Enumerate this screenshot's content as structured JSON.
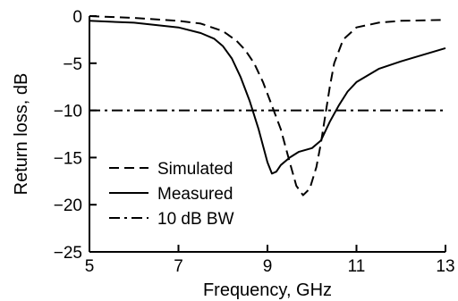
{
  "chart_data": {
    "type": "line",
    "xlabel": "Frequency, GHz",
    "ylabel": "Return loss, dB",
    "xlim": [
      5,
      13
    ],
    "ylim": [
      -25,
      0
    ],
    "x_ticks": [
      {
        "value": 5,
        "label": "5"
      },
      {
        "value": 7,
        "label": "7"
      },
      {
        "value": 9,
        "label": "9"
      },
      {
        "value": 11,
        "label": "11"
      },
      {
        "value": 13,
        "label": "13"
      }
    ],
    "y_ticks": [
      {
        "value": 0,
        "label": "0"
      },
      {
        "value": -5,
        "label": "−5"
      },
      {
        "value": -10,
        "label": "−10"
      },
      {
        "value": -15,
        "label": "−15"
      },
      {
        "value": -20,
        "label": "−20"
      },
      {
        "value": -25,
        "label": "−25"
      }
    ],
    "grid": false,
    "legend_position": "bottom-left",
    "series": [
      {
        "name": "Simulated",
        "style": "dashed",
        "color": "#000000",
        "x": [
          5.0,
          6.0,
          7.0,
          7.5,
          8.0,
          8.3,
          8.5,
          8.7,
          8.9,
          9.1,
          9.3,
          9.5,
          9.65,
          9.8,
          9.95,
          10.1,
          10.2,
          10.3,
          10.4,
          10.5,
          10.7,
          11.0,
          11.5,
          12.0,
          13.0
        ],
        "y": [
          0.0,
          -0.2,
          -0.5,
          -0.8,
          -1.6,
          -2.6,
          -3.6,
          -5.0,
          -7.0,
          -9.5,
          -12.0,
          -15.5,
          -18.0,
          -19.0,
          -18.3,
          -16.0,
          -13.5,
          -10.5,
          -7.5,
          -5.0,
          -2.5,
          -1.2,
          -0.7,
          -0.5,
          -0.4
        ]
      },
      {
        "name": "Measured",
        "style": "solid",
        "color": "#000000",
        "x": [
          5.0,
          6.0,
          7.0,
          7.5,
          7.8,
          8.0,
          8.2,
          8.4,
          8.6,
          8.8,
          9.0,
          9.1,
          9.2,
          9.3,
          9.5,
          9.7,
          10.0,
          10.2,
          10.4,
          10.6,
          10.8,
          11.0,
          11.5,
          12.0,
          12.5,
          13.0
        ],
        "y": [
          -0.5,
          -0.7,
          -1.2,
          -1.8,
          -2.4,
          -3.2,
          -4.5,
          -6.5,
          -9.0,
          -12.0,
          -15.5,
          -16.7,
          -16.5,
          -15.8,
          -15.0,
          -14.4,
          -14.0,
          -13.2,
          -11.2,
          -9.5,
          -8.0,
          -7.0,
          -5.6,
          -4.8,
          -4.1,
          -3.4
        ]
      },
      {
        "name": "10 dB BW",
        "style": "dashdot",
        "color": "#000000",
        "x": [
          5,
          13
        ],
        "y": [
          -10,
          -10
        ]
      }
    ]
  }
}
